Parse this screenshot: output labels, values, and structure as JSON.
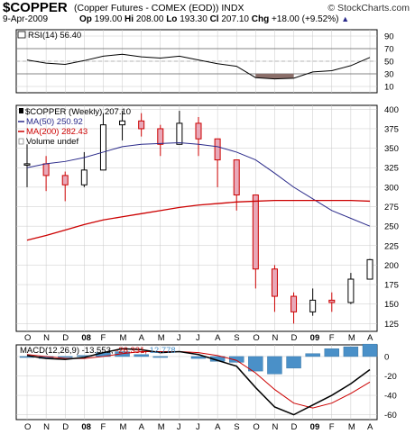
{
  "header": {
    "symbol": "$COPPER",
    "description": "(Copper Futures - COMEX (EOD)) INDX",
    "brand": "© StockCharts.com",
    "date": "9-Apr-2009",
    "open_label": "Op",
    "open": "199.00",
    "high_label": "Hi",
    "high": "208.00",
    "low_label": "Lo",
    "low": "193.30",
    "close_label": "Cl",
    "close": "207.10",
    "change_label": "Chg",
    "change": "+18.00 (+9.52%)",
    "trend_glyph": "▲"
  },
  "colors": {
    "up_candle": "#000000",
    "down_candle": "#cc0000",
    "down_candle_fill": "#e8a8b8",
    "ma50": "#2a2a8a",
    "ma200": "#cc0000",
    "rsi_line": "#000000",
    "rsi_oversold_fill": "#8b6f6a",
    "macd_line": "#000000",
    "signal_line": "#cc0000",
    "histogram": "#4a90c8",
    "grid": "#c8c8c8"
  },
  "chart_data": [
    {
      "type": "line",
      "panel": "rsi",
      "legend": "RSI(14) 56.40",
      "y_ticks": [
        90,
        70,
        50,
        30,
        10
      ],
      "ylim": [
        0,
        100
      ],
      "reference_lines": [
        70,
        30
      ],
      "x": [
        "2007-10",
        "2007-11",
        "2007-12",
        "2008-01",
        "2008-02",
        "2008-03",
        "2008-04",
        "2008-05",
        "2008-06",
        "2008-07",
        "2008-08",
        "2008-09",
        "2008-10",
        "2008-11",
        "2008-12",
        "2009-01",
        "2009-02",
        "2009-03",
        "2009-04"
      ],
      "values": [
        52,
        47,
        45,
        51,
        58,
        61,
        57,
        55,
        58,
        52,
        46,
        42,
        24,
        22,
        23,
        33,
        35,
        43,
        56
      ]
    },
    {
      "type": "bar",
      "panel": "price",
      "legend": "$COPPER (Weekly) 207.10",
      "y_ticks": [
        400,
        375,
        350,
        325,
        300,
        275,
        250,
        225,
        200,
        175,
        150,
        125
      ],
      "ylim": [
        115,
        405
      ],
      "x_ticks": [
        "O",
        "N",
        "D",
        "08",
        "F",
        "M",
        "A",
        "M",
        "J",
        "J",
        "A",
        "S",
        "O",
        "N",
        "D",
        "09",
        "F",
        "M",
        "A"
      ],
      "x": [
        "2007-10",
        "2007-11",
        "2007-12",
        "2008-01",
        "2008-02",
        "2008-03",
        "2008-04",
        "2008-05",
        "2008-06",
        "2008-07",
        "2008-08",
        "2008-09",
        "2008-10",
        "2008-11",
        "2008-12",
        "2009-01",
        "2009-02",
        "2009-03",
        "2009-04"
      ],
      "close": [
        330,
        315,
        303,
        322,
        380,
        385,
        375,
        355,
        382,
        362,
        335,
        290,
        195,
        160,
        140,
        155,
        152,
        182,
        207
      ],
      "high": [
        355,
        340,
        320,
        345,
        395,
        398,
        395,
        380,
        398,
        390,
        360,
        330,
        290,
        200,
        165,
        170,
        165,
        190,
        208
      ],
      "low": [
        300,
        295,
        282,
        300,
        335,
        360,
        365,
        340,
        355,
        340,
        300,
        270,
        170,
        140,
        125,
        135,
        140,
        150,
        193
      ],
      "series": [
        {
          "name": "MA(50) 250.92",
          "values": [
            325,
            330,
            333,
            338,
            345,
            352,
            355,
            356,
            357,
            355,
            352,
            345,
            335,
            318,
            300,
            285,
            270,
            260,
            250
          ]
        },
        {
          "name": "MA(200) 282.43",
          "values": [
            232,
            238,
            245,
            252,
            258,
            262,
            266,
            270,
            274,
            277,
            279,
            281,
            282,
            283,
            283,
            283,
            283,
            283,
            282
          ]
        }
      ],
      "volume_legend": "Volume undef"
    },
    {
      "type": "line",
      "panel": "macd",
      "legend_name": "MACD(12,26,9)",
      "legend_macd": "-13.553",
      "legend_signal": "-26.331",
      "legend_hist": "12.778",
      "y_ticks": [
        0,
        -20,
        -40,
        -60
      ],
      "ylim": [
        -65,
        12
      ],
      "x": [
        "2007-10",
        "2007-11",
        "2007-12",
        "2008-01",
        "2008-02",
        "2008-03",
        "2008-04",
        "2008-05",
        "2008-06",
        "2008-07",
        "2008-08",
        "2008-09",
        "2008-10",
        "2008-11",
        "2008-12",
        "2009-01",
        "2009-02",
        "2009-03",
        "2009-04"
      ],
      "series": [
        {
          "name": "MACD",
          "values": [
            1,
            -2,
            -3,
            -1,
            4,
            8,
            7,
            4,
            5,
            2,
            -4,
            -10,
            -32,
            -52,
            -60,
            -50,
            -40,
            -28,
            -13.5
          ]
        },
        {
          "name": "Signal",
          "values": [
            2,
            0,
            -2,
            -2,
            0,
            3,
            5,
            5,
            5,
            4,
            1,
            -4,
            -17,
            -34,
            -48,
            -53,
            -48,
            -38,
            -26.3
          ]
        },
        {
          "name": "Histogram",
          "values": [
            -1,
            -2,
            -1,
            1,
            4,
            5,
            2,
            -1,
            0,
            -2,
            -5,
            -6,
            -15,
            -18,
            -12,
            3,
            8,
            10,
            12.8
          ]
        }
      ],
      "x_ticks": [
        "O",
        "N",
        "D",
        "08",
        "F",
        "M",
        "A",
        "M",
        "J",
        "J",
        "A",
        "S",
        "O",
        "N",
        "D",
        "09",
        "F",
        "M",
        "A"
      ]
    }
  ]
}
